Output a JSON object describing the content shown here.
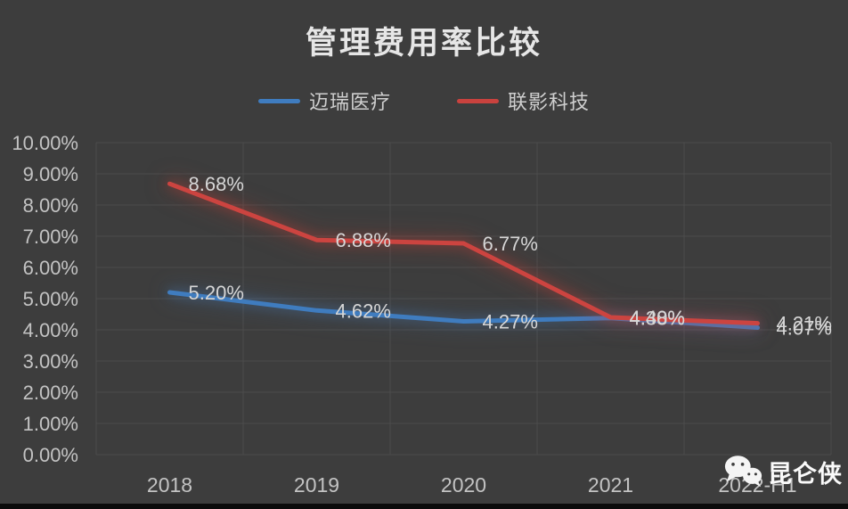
{
  "title": "管理费用率比较",
  "legend": {
    "items": [
      {
        "label": "迈瑞医疗",
        "color": "#3f7cbf"
      },
      {
        "label": "联影科技",
        "color": "#c9423e"
      }
    ]
  },
  "watermark": {
    "icon": "wechat-icon",
    "text": "昆仑侠"
  },
  "colors": {
    "background": "#3d3d3d",
    "gridline": "#4c4c4c",
    "axis_text": "#c3c3c3",
    "data_label_text": "#d6d6d6",
    "title_text": "#e6e6e6"
  },
  "chart_data": {
    "type": "line",
    "title": "管理费用率比较",
    "categories": [
      "2018",
      "2019",
      "2020",
      "2021",
      "2022-H1"
    ],
    "series": [
      {
        "name": "迈瑞医疗",
        "color": "#3f7cbf",
        "glow": "rgba(70,130,200,0.45)",
        "values": [
          5.2,
          4.62,
          4.27,
          4.38,
          4.07
        ],
        "labels": [
          "5.20%",
          "4.62%",
          "4.27%",
          "4.38%",
          "4.07%"
        ]
      },
      {
        "name": "联影科技",
        "color": "#cc4440",
        "glow": "rgba(210,60,50,0.5)",
        "values": [
          8.68,
          6.88,
          6.77,
          4.4,
          4.21
        ],
        "labels": [
          "8.68%",
          "6.88%",
          "6.77%",
          "4.40%",
          "4.21%"
        ]
      }
    ],
    "ylim": [
      0,
      10
    ],
    "yticks": [
      "10.00%",
      "9.00%",
      "8.00%",
      "7.00%",
      "6.00%",
      "5.00%",
      "4.00%",
      "3.00%",
      "2.00%",
      "1.00%",
      "0.00%"
    ],
    "xlabel": "",
    "ylabel": "",
    "grid": true,
    "legend_position": "top"
  }
}
